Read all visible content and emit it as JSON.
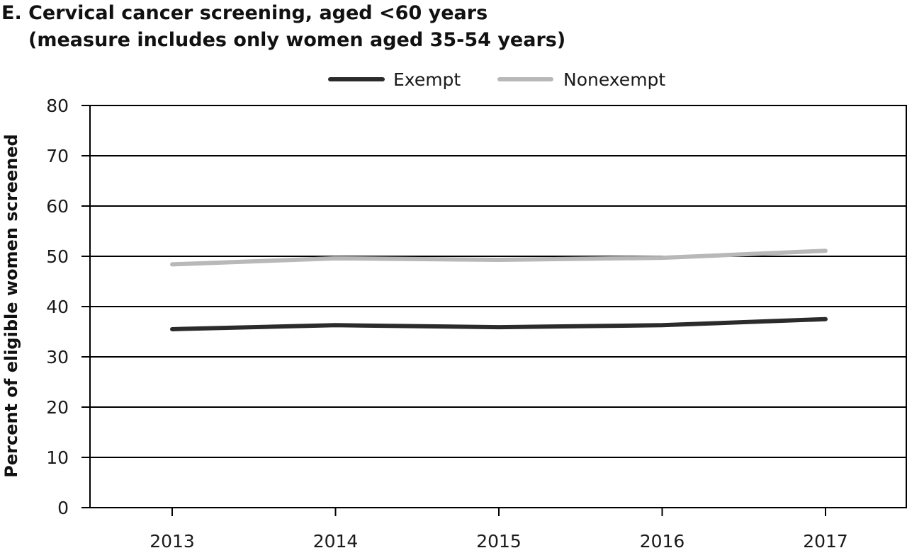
{
  "chart_data": {
    "type": "line",
    "title_line1": "E. Cervical cancer screening, aged <60 years",
    "title_line2": "(measure includes only women aged 35-54 years)",
    "xlabel": "",
    "ylabel": "Percent of eligible women screened",
    "categories": [
      "2013",
      "2014",
      "2015",
      "2016",
      "2017"
    ],
    "y_ticks": [
      "0",
      "10",
      "20",
      "30",
      "40",
      "50",
      "60",
      "70",
      "80"
    ],
    "ylim": [
      0,
      80
    ],
    "grid": "horizontal",
    "legend_position": "top-center",
    "series": [
      {
        "name": "Exempt",
        "color": "#2b2b2b",
        "values": [
          35.5,
          36.3,
          35.9,
          36.3,
          37.5
        ]
      },
      {
        "name": "Nonexempt",
        "color": "#b8b8b8",
        "values": [
          48.4,
          49.6,
          49.3,
          49.7,
          51.1
        ]
      }
    ]
  }
}
